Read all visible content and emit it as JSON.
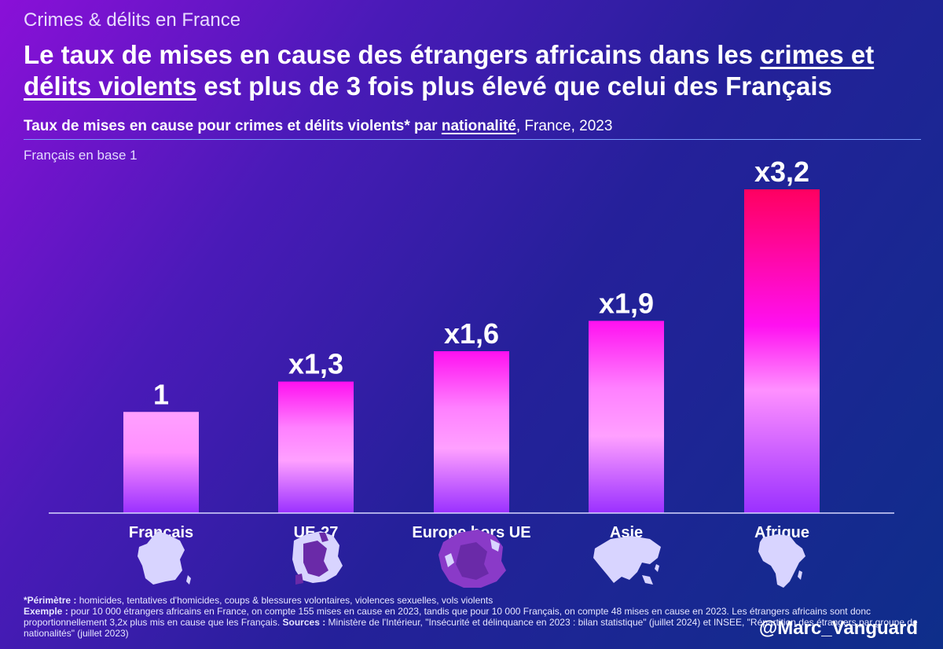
{
  "header": {
    "kicker": "Crimes & délits en France",
    "headline_part1": "Le taux de mises en cause des étrangers africains dans les ",
    "headline_underlined": "crimes et délits violents",
    "headline_part2": " est plus de 3 fois plus élevé que celui des Français",
    "subtitle_bold": "Taux de mises en cause pour crimes et délits violents* par ",
    "subtitle_underlined": "nationalité",
    "subtitle_regular": ", France, 2023",
    "base_note": "Français en base 1"
  },
  "chart_data": {
    "type": "bar",
    "categories": [
      "Français",
      "UE-27",
      "Europe hors UE",
      "Asie",
      "Afrique"
    ],
    "values": [
      1,
      1.3,
      1.6,
      1.9,
      3.2
    ],
    "data_labels": [
      "1",
      "x1,3",
      "x1,6",
      "x1,9",
      "x3,2"
    ],
    "title": "Taux de mises en cause pour crimes et délits violents* par nationalité, France, 2023",
    "ylim": [
      0,
      3.2
    ],
    "grid": false,
    "colors": {
      "bar_top_high": "#ff0060",
      "bar_mid": "#ff10f0",
      "bar_light": "#ff90ff",
      "bar_base": "#9a30ff",
      "map_fill": "#d8d4ff",
      "map_highlight": "#6a2aa8"
    },
    "icons": [
      "france-map-icon",
      "eu27-map-icon",
      "europe-non-eu-map-icon",
      "asia-map-icon",
      "africa-map-icon"
    ]
  },
  "footer": {
    "perimetre_label": "*Périmètre :",
    "perimetre_text": " homicides, tentatives d'homicides, coups & blessures volontaires, violences sexuelles, vols violents",
    "exemple_label": "Exemple :",
    "exemple_text": " pour 10 000 étrangers africains en France, on compte 155 mises en cause en 2023, tandis que pour 10 000 Français, on compte 48 mises en cause en 2023. Les étrangers africains sont donc proportionnellement 3,2x plus mis en cause que les Français. ",
    "sources_label": "Sources :",
    "sources_text": " Ministère de l'Intérieur, \"Insécurité et délinquance en 2023 : bilan statistique\" (juillet 2024) et INSEE, \"Répartition des étrangers par groupe de nationalités\" (juillet 2023)"
  },
  "handle": "@Marc_Vanguard"
}
